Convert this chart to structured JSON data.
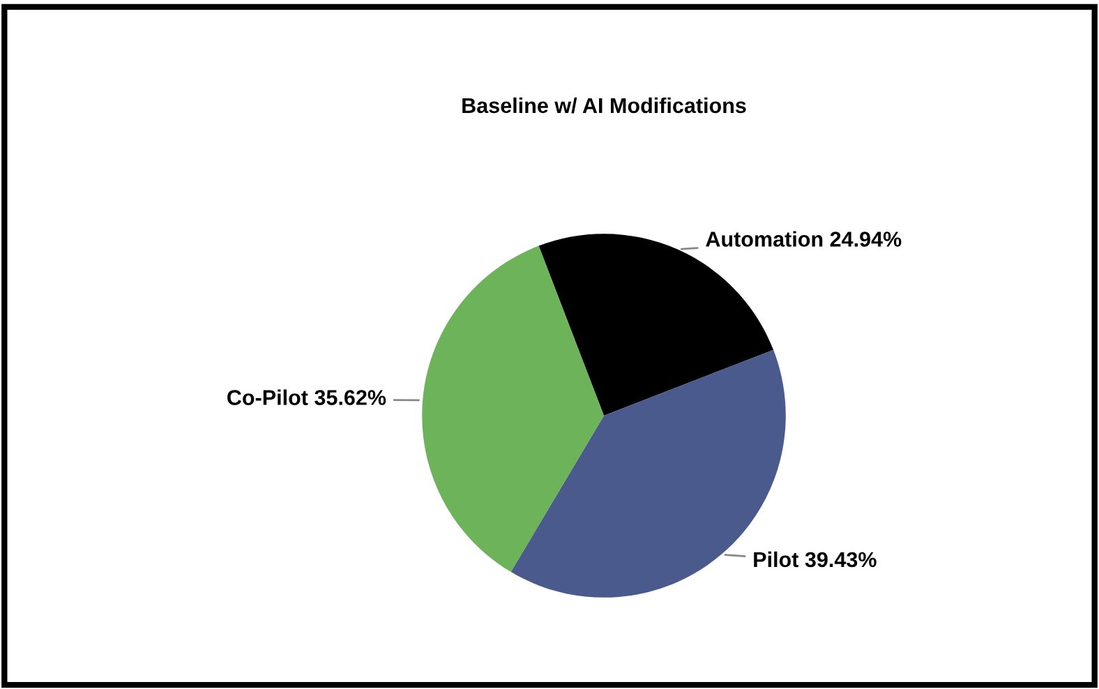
{
  "chart_data": {
    "type": "pie",
    "title": "Baseline w/ AI Modifications",
    "categories": [
      "Automation",
      "Pilot",
      "Co-Pilot"
    ],
    "values": [
      24.94,
      39.43,
      35.62
    ],
    "value_labels": [
      "24.94%",
      "39.43%",
      "35.62%"
    ],
    "colors": [
      "#000000",
      "#4a5a8c",
      "#6db35a"
    ],
    "legend": false
  }
}
